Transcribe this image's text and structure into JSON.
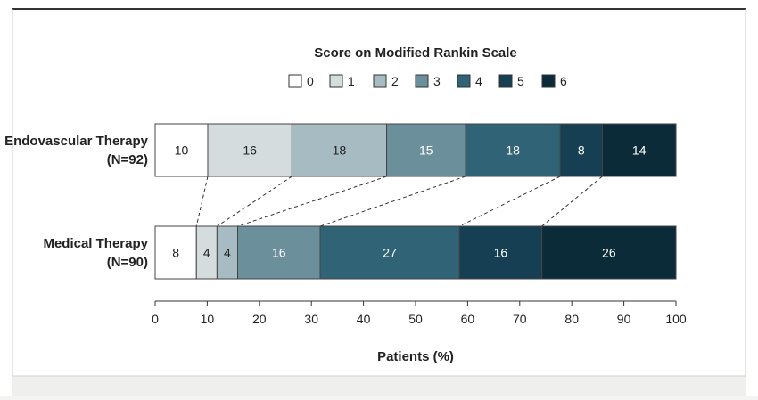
{
  "chart_data": {
    "type": "bar",
    "orientation": "horizontal",
    "stacked": "percent",
    "legend_title": "Score on Modified Rankin Scale",
    "legend_placement": "top-center",
    "categories": [
      "Endovascular Therapy\n(N=92)",
      "Medical Therapy\n(N=90)"
    ],
    "series": [
      {
        "name": "0",
        "values": [
          10,
          8
        ]
      },
      {
        "name": "1",
        "values": [
          16,
          4
        ]
      },
      {
        "name": "2",
        "values": [
          18,
          4
        ]
      },
      {
        "name": "3",
        "values": [
          15,
          16
        ]
      },
      {
        "name": "4",
        "values": [
          18,
          27
        ]
      },
      {
        "name": "5",
        "values": [
          8,
          16
        ]
      },
      {
        "name": "6",
        "values": [
          14,
          26
        ]
      }
    ],
    "colors": [
      "#ffffff",
      "#d4dcdd",
      "#a7bcc2",
      "#6b909c",
      "#2f6375",
      "#163f53",
      "#0c2b38"
    ],
    "label_colors": [
      "#222222",
      "#222222",
      "#222222",
      "#ffffff",
      "#ffffff",
      "#ffffff",
      "#ffffff"
    ],
    "xlabel": "Patients (%)",
    "ylabel": "",
    "xlim": [
      0,
      100
    ],
    "xticks": [
      0,
      10,
      20,
      30,
      40,
      50,
      60,
      70,
      80,
      90,
      100
    ],
    "grid": false,
    "connectors": "dashed"
  }
}
